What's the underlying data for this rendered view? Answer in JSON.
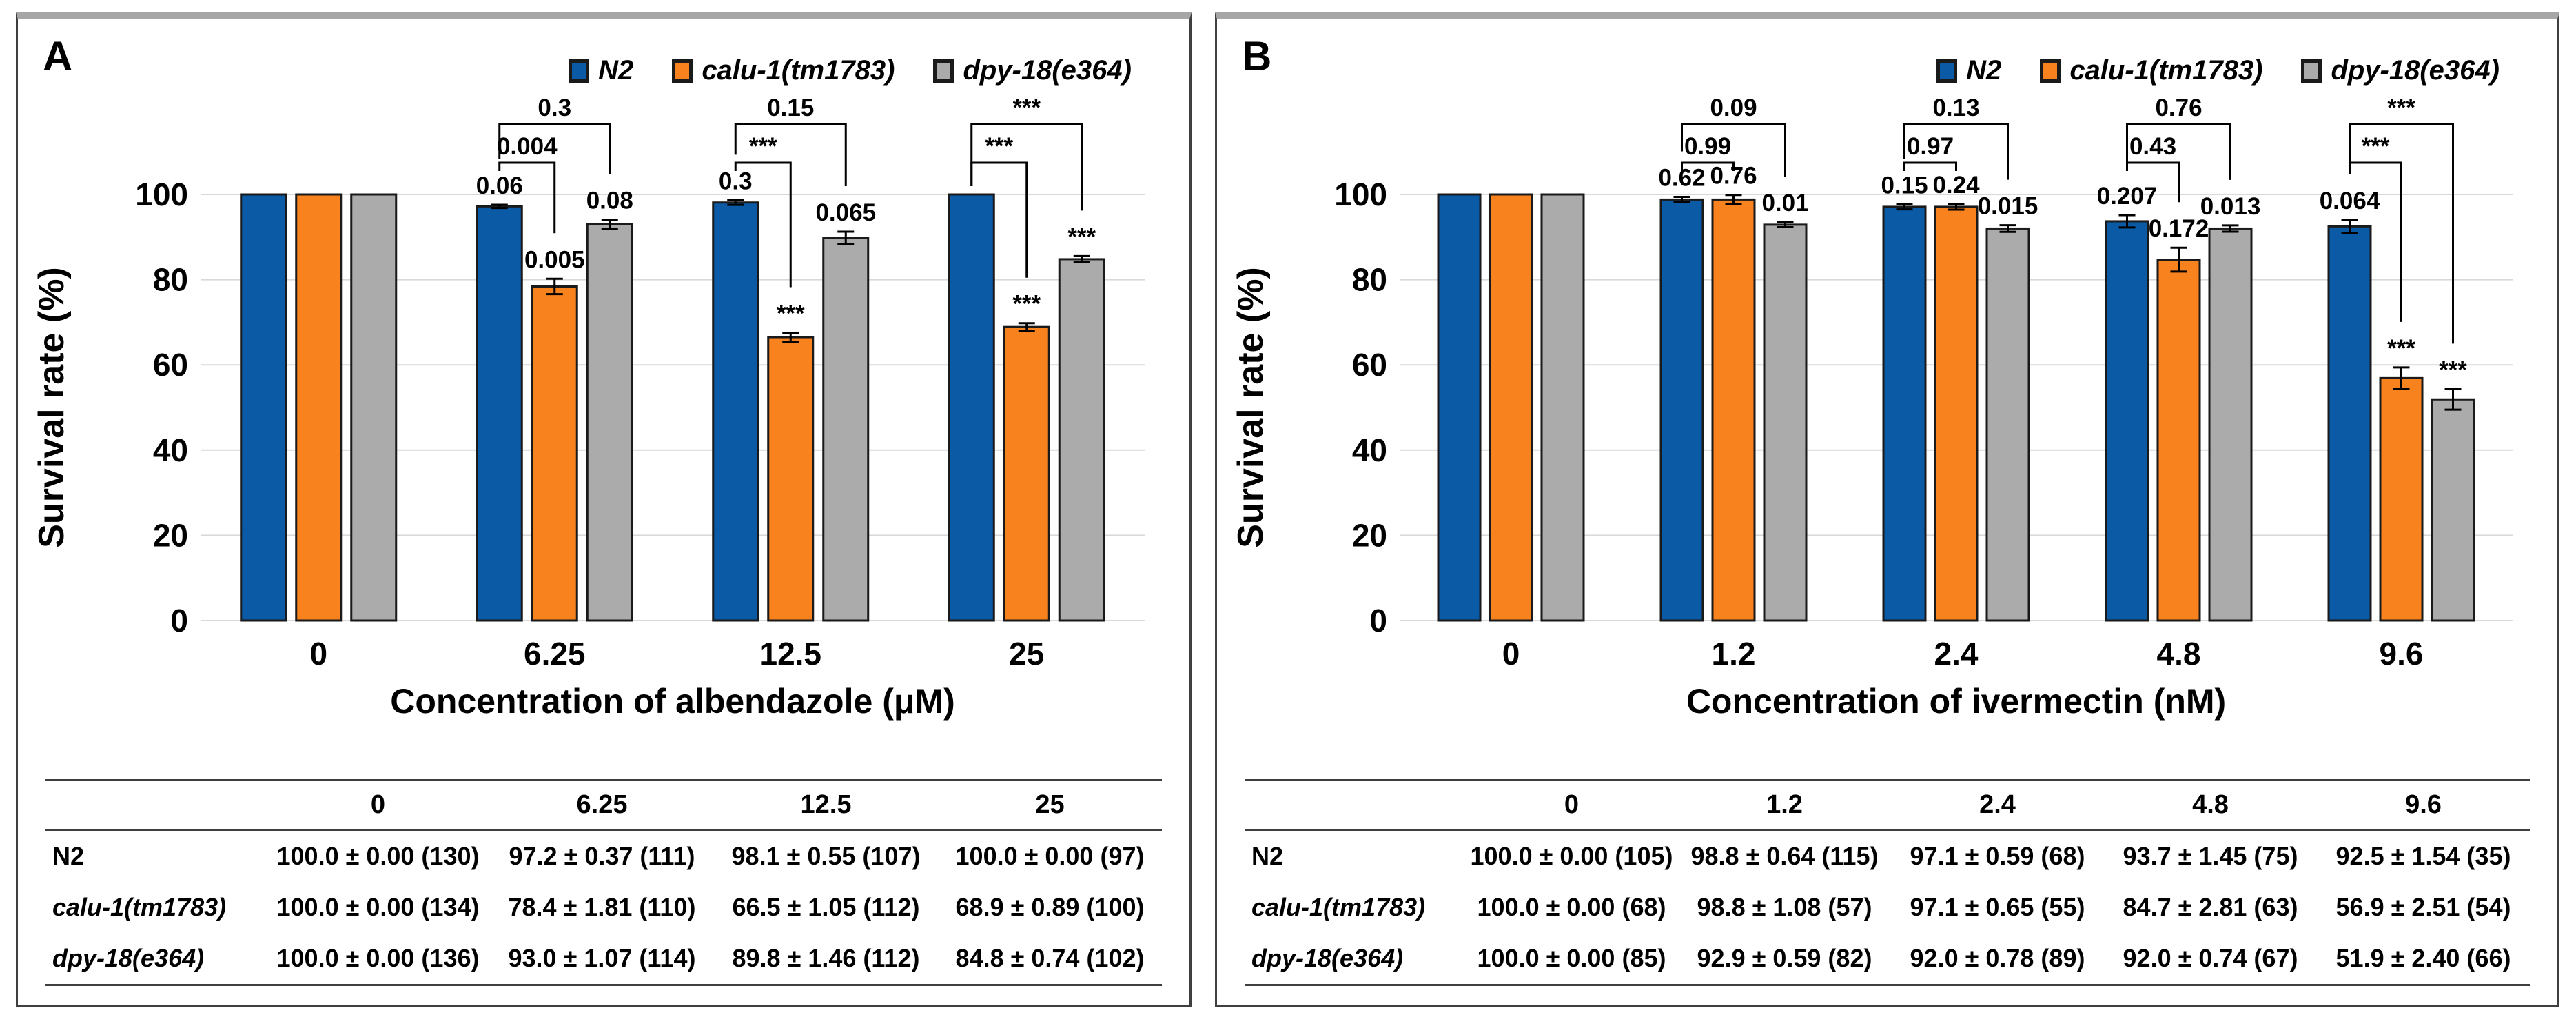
{
  "colors": {
    "blue": "#0B5AA5",
    "orange": "#F8821E",
    "gray": "#ABABAB",
    "bar_outline": "#1A1A1A",
    "gridline": "#D9D9D9",
    "error_bar": "#000000",
    "bracket": "#000000",
    "panel_border": "#3F3F3F",
    "panel_top_band": "#A6A6A6",
    "table_rule": "#3F3F3F"
  },
  "panels": [
    {
      "label": "A"
    },
    {
      "label": "B"
    }
  ],
  "chart_data": [
    {
      "type": "bar",
      "panel": "A",
      "title": "",
      "xlabel": "Concentration of albendazole (μM)",
      "ylabel": "Survival rate (%)",
      "ylim": [
        0,
        100
      ],
      "yticks": [
        0,
        20,
        40,
        60,
        80,
        100
      ],
      "grid": true,
      "legend_position": "top-right",
      "categories": [
        "0",
        "6.25",
        "12.5",
        "25"
      ],
      "series": [
        {
          "name": "N2",
          "color_key": "blue",
          "values": [
            100.0,
            97.2,
            98.1,
            100.0
          ],
          "sem": [
            0.0,
            0.37,
            0.55,
            0.0
          ],
          "point_labels": [
            "",
            "0.06",
            "0.3",
            ""
          ]
        },
        {
          "name": "calu-1(tm1783)",
          "color_key": "orange",
          "values": [
            100.0,
            78.4,
            66.5,
            68.9
          ],
          "sem": [
            0.0,
            1.81,
            1.05,
            0.89
          ],
          "point_labels": [
            "",
            "0.005",
            "***",
            "***"
          ]
        },
        {
          "name": "dpy-18(e364)",
          "color_key": "gray",
          "values": [
            100.0,
            93.0,
            89.8,
            84.8
          ],
          "sem": [
            0.0,
            1.07,
            1.46,
            0.74
          ],
          "point_labels": [
            "",
            "0.08",
            "0.065",
            "***"
          ]
        }
      ],
      "comparisons": [
        {
          "category_index": 1,
          "inner": "0.004",
          "outer": "0.3"
        },
        {
          "category_index": 2,
          "inner": "***",
          "outer": "0.15"
        },
        {
          "category_index": 3,
          "inner": "***",
          "outer": "***"
        }
      ]
    },
    {
      "type": "bar",
      "panel": "B",
      "title": "",
      "xlabel": "Concentration of ivermectin (nM)",
      "ylabel": "Survival rate (%)",
      "ylim": [
        0,
        100
      ],
      "yticks": [
        0,
        20,
        40,
        60,
        80,
        100
      ],
      "grid": true,
      "legend_position": "top-right",
      "categories": [
        "0",
        "1.2",
        "2.4",
        "4.8",
        "9.6"
      ],
      "series": [
        {
          "name": "N2",
          "color_key": "blue",
          "values": [
            100.0,
            98.8,
            97.1,
            93.7,
            92.5
          ],
          "sem": [
            0.0,
            0.64,
            0.59,
            1.45,
            1.54
          ],
          "point_labels": [
            "",
            "0.62",
            "0.15",
            "0.207",
            "0.064"
          ]
        },
        {
          "name": "calu-1(tm1783)",
          "color_key": "orange",
          "values": [
            100.0,
            98.8,
            97.1,
            84.7,
            56.9
          ],
          "sem": [
            0.0,
            1.08,
            0.65,
            2.81,
            2.51
          ],
          "point_labels": [
            "",
            "0.76",
            "0.24",
            "0.172",
            "***"
          ]
        },
        {
          "name": "dpy-18(e364)",
          "color_key": "gray",
          "values": [
            100.0,
            92.9,
            92.0,
            92.0,
            51.9
          ],
          "sem": [
            0.0,
            0.59,
            0.78,
            0.74,
            2.4
          ],
          "point_labels": [
            "",
            "0.01",
            "0.015",
            "0.013",
            "***"
          ]
        }
      ],
      "comparisons": [
        {
          "category_index": 1,
          "inner": "0.99",
          "outer": "0.09"
        },
        {
          "category_index": 2,
          "inner": "0.97",
          "outer": "0.13"
        },
        {
          "category_index": 3,
          "inner": "0.43",
          "outer": "0.76"
        },
        {
          "category_index": 4,
          "inner": "***",
          "outer": "***"
        }
      ]
    }
  ],
  "tables": [
    {
      "panel": "A",
      "col_headers": [
        "",
        "0",
        "6.25",
        "12.5",
        "25"
      ],
      "rows": [
        {
          "label": "N2",
          "italic": false,
          "cells": [
            "100.0 ± 0.00 (130)",
            "97.2 ± 0.37 (111)",
            "98.1 ± 0.55 (107)",
            "100.0 ± 0.00 (97)"
          ]
        },
        {
          "label": "calu-1(tm1783)",
          "italic": true,
          "cells": [
            "100.0 ± 0.00 (134)",
            "78.4 ± 1.81 (110)",
            "66.5 ± 1.05 (112)",
            "68.9 ± 0.89 (100)"
          ]
        },
        {
          "label": "dpy-18(e364)",
          "italic": true,
          "cells": [
            "100.0 ± 0.00 (136)",
            "93.0 ± 1.07 (114)",
            "89.8 ± 1.46 (112)",
            "84.8 ± 0.74 (102)"
          ]
        }
      ]
    },
    {
      "panel": "B",
      "col_headers": [
        "",
        "0",
        "1.2",
        "2.4",
        "4.8",
        "9.6"
      ],
      "rows": [
        {
          "label": "N2",
          "italic": false,
          "cells": [
            "100.0 ± 0.00 (105)",
            "98.8 ± 0.64 (115)",
            "97.1 ± 0.59 (68)",
            "93.7 ± 1.45 (75)",
            "92.5 ± 1.54 (35)"
          ]
        },
        {
          "label": "calu-1(tm1783)",
          "italic": true,
          "cells": [
            "100.0 ± 0.00 (68)",
            "98.8 ± 1.08 (57)",
            "97.1 ± 0.65 (55)",
            "84.7 ± 2.81 (63)",
            "56.9 ± 2.51 (54)"
          ]
        },
        {
          "label": "dpy-18(e364)",
          "italic": true,
          "cells": [
            "100.0 ± 0.00 (85)",
            "92.9 ± 0.59 (82)",
            "92.0 ± 0.78 (89)",
            "92.0 ± 0.74 (67)",
            "51.9 ± 2.40 (66)"
          ]
        }
      ]
    }
  ]
}
